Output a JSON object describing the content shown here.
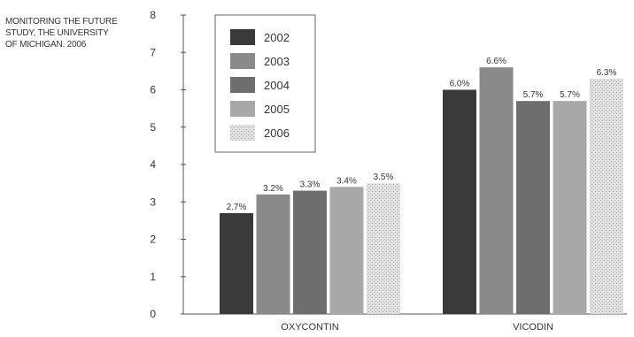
{
  "source_note": [
    "MONITORING THE FUTURE",
    "STUDY, THE UNIVERSITY",
    "OF MICHIGAN. 2006"
  ],
  "chart_data": {
    "type": "bar",
    "title": "",
    "xlabel": "",
    "ylabel": "",
    "ylim": [
      0,
      8
    ],
    "yticks": [
      "0",
      "1",
      "2",
      "3",
      "4",
      "5",
      "6",
      "7",
      "8"
    ],
    "categories": [
      "OXYCONTIN",
      "VICODIN"
    ],
    "series": [
      {
        "name": "2002",
        "values": [
          2.7,
          6.0
        ],
        "labels": [
          "2.7%",
          "6.0%"
        ],
        "color": "#3a3a3a"
      },
      {
        "name": "2003",
        "values": [
          3.2,
          6.6
        ],
        "labels": [
          "3.2%",
          "6.6%"
        ],
        "color": "#8a8a8a"
      },
      {
        "name": "2004",
        "values": [
          3.3,
          5.7
        ],
        "labels": [
          "3.3%",
          "5.7%"
        ],
        "color": "#6e6e6e"
      },
      {
        "name": "2005",
        "values": [
          3.4,
          5.7
        ],
        "labels": [
          "3.4%",
          "5.7%"
        ],
        "color": "#a8a8a8"
      },
      {
        "name": "2006",
        "values": [
          3.5,
          6.3
        ],
        "labels": [
          "3.5%",
          "6.3%"
        ],
        "color": "#d8d8d8"
      }
    ],
    "legend_position": "top-left",
    "grid": false
  }
}
